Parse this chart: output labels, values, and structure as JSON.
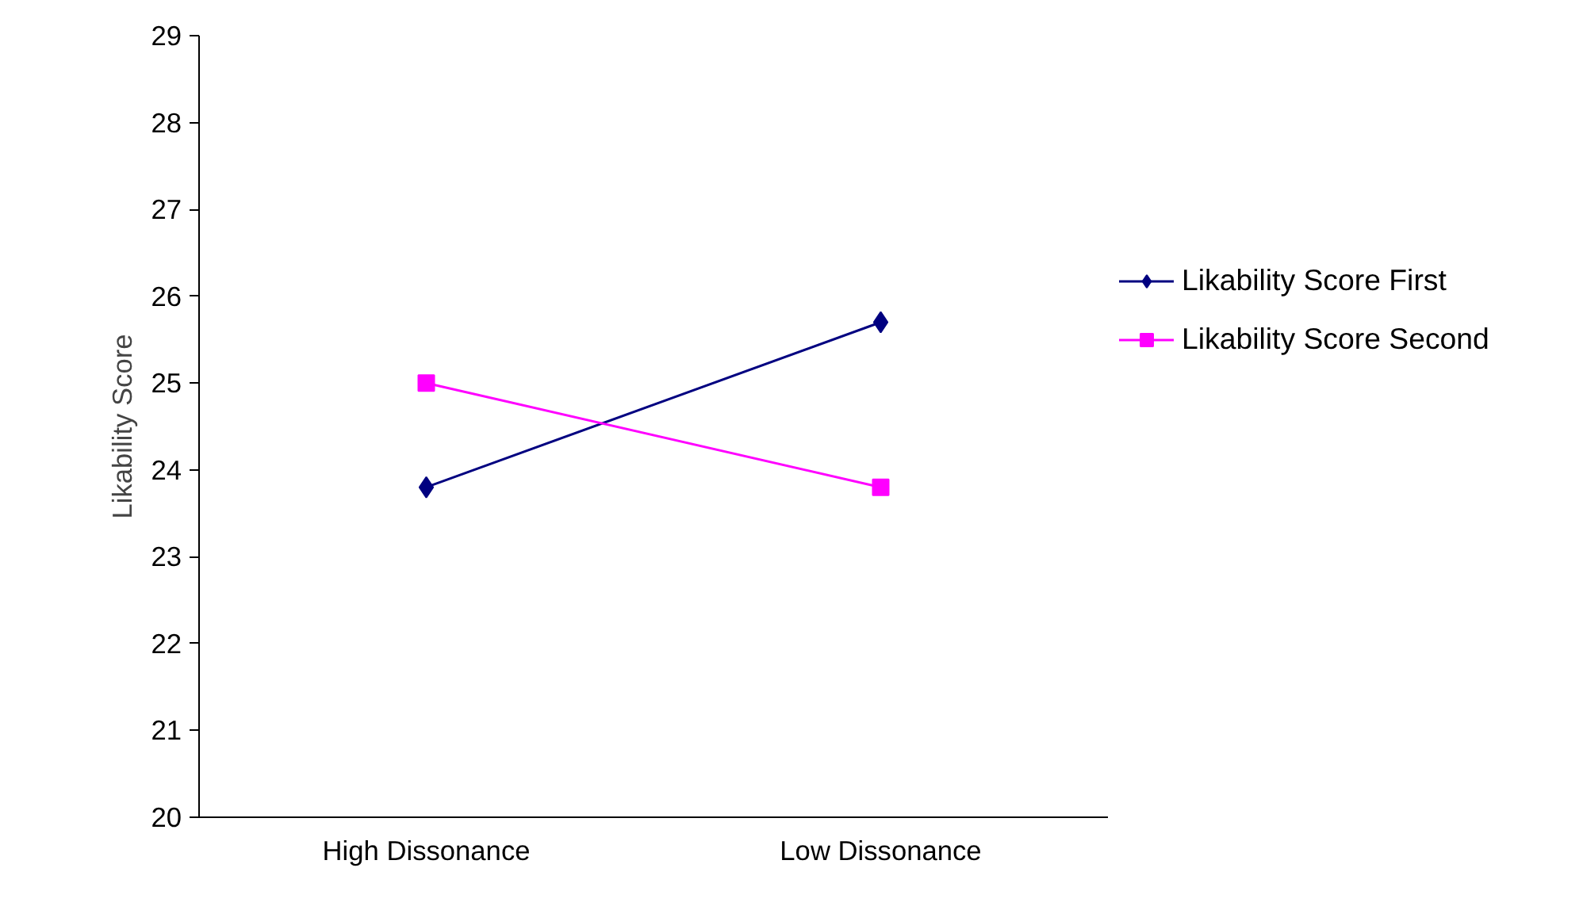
{
  "chart_data": {
    "type": "line",
    "ylabel": "Likability Score",
    "categories": [
      "High Dissonance",
      "Low Dissonance"
    ],
    "series": [
      {
        "name": "Likability Score First",
        "color": "#000080",
        "values": [
          23.8,
          25.7
        ],
        "marker": "diamond"
      },
      {
        "name": "Likability Score Second",
        "color": "#ff00ff",
        "values": [
          25.0,
          23.8
        ],
        "marker": "square"
      }
    ],
    "ylim": [
      20,
      29
    ],
    "yticks": [
      20,
      21,
      22,
      23,
      24,
      25,
      26,
      27,
      28,
      29
    ],
    "grid": false,
    "legend": "right"
  }
}
